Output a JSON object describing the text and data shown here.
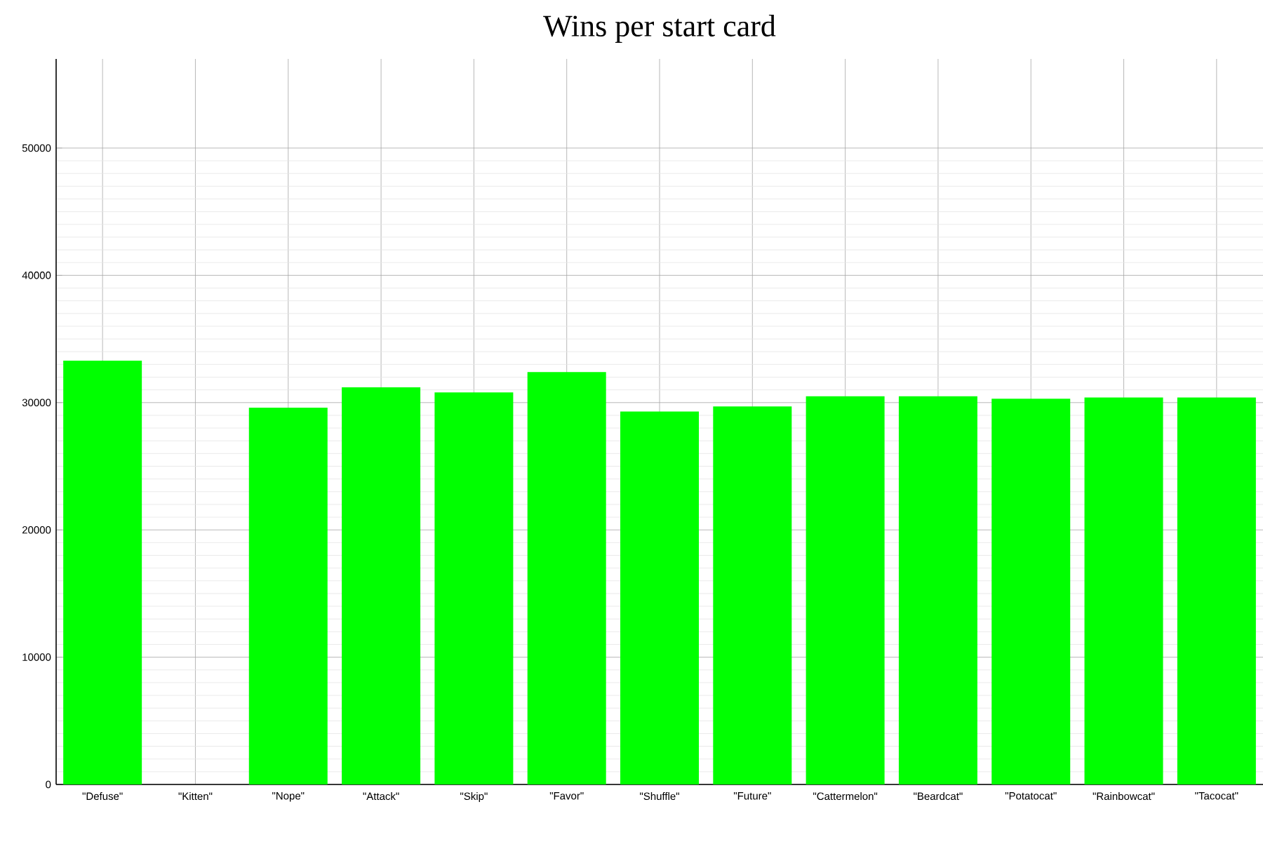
{
  "chart_data": {
    "type": "bar",
    "title": "Wins per start card",
    "categories": [
      "\"Defuse\"",
      "\"Kitten\"",
      "\"Nope\"",
      "\"Attack\"",
      "\"Skip\"",
      "\"Favor\"",
      "\"Shuffle\"",
      "\"Future\"",
      "\"Cattermelon\"",
      "\"Beardcat\"",
      "\"Potatocat\"",
      "\"Rainbowcat\"",
      "\"Tacocat\""
    ],
    "values": [
      33300,
      0,
      29600,
      31200,
      30800,
      32400,
      29300,
      29700,
      30500,
      30500,
      30300,
      30400,
      30400
    ],
    "color": "#00ff00",
    "ylim": [
      0,
      57000
    ],
    "yticks": [
      0,
      10000,
      20000,
      30000,
      40000,
      50000
    ],
    "grid": true
  }
}
